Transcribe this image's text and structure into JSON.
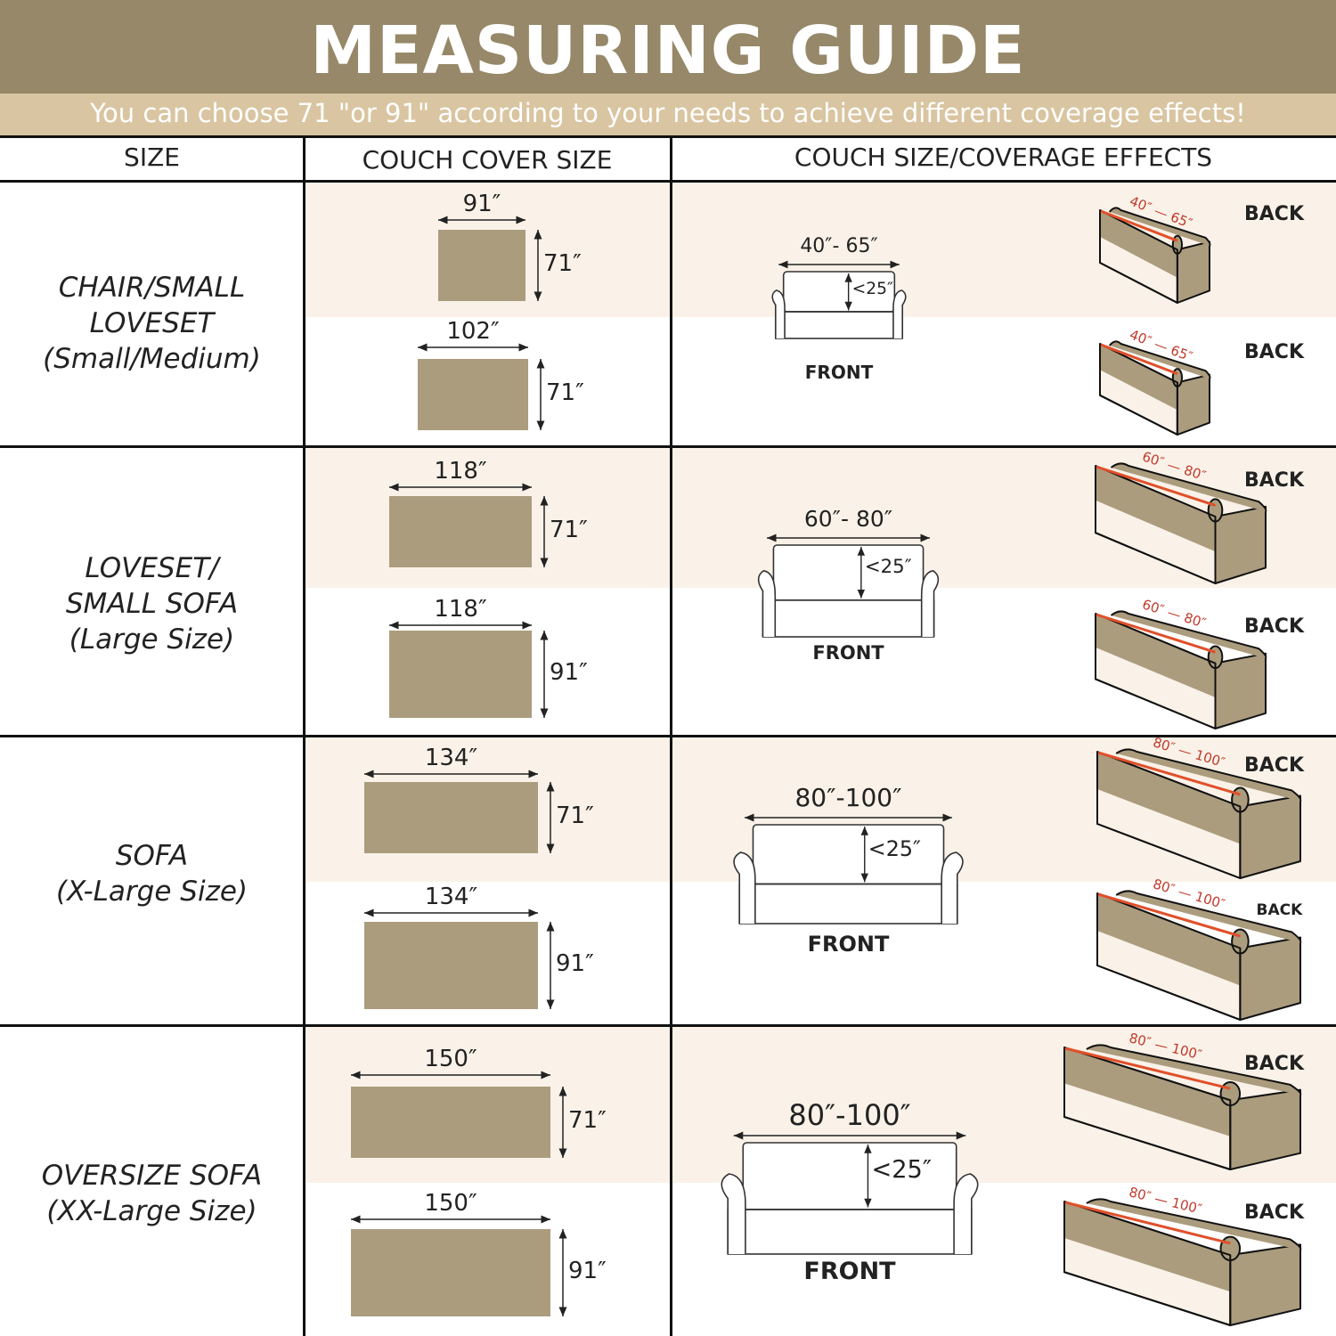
{
  "title": "MEASURING GUIDE",
  "subtitle": "You can choose 71 \"or 91\" according to your needs to achieve different coverage effects!",
  "columns": [
    "SIZE",
    "COUCH COVER SIZE",
    "COUCH SIZE/COVERAGE EFFECTS"
  ],
  "colors": {
    "header": "#968868",
    "subheader": "#d9c5a1",
    "fabric": "#ab9c7e",
    "band": "#faf2e8",
    "measure_line": "#e0502a"
  },
  "sections": [
    {
      "size_lines": [
        "CHAIR/SMALL",
        "LOVESET",
        "(Small/Medium)"
      ],
      "covers": [
        {
          "width": "91″",
          "height": "71″"
        },
        {
          "width": "102″",
          "height": "71″"
        }
      ],
      "front": {
        "range": "40″- 65″",
        "back_height": "<25″",
        "label": "FRONT"
      },
      "back": [
        {
          "range_a": "40″",
          "range_b": "65″",
          "label": "BACK"
        },
        {
          "range_a": "40″",
          "range_b": "65″",
          "label": "BACK"
        }
      ]
    },
    {
      "size_lines": [
        "LOVESET/",
        "SMALL SOFA",
        "(Large Size)"
      ],
      "covers": [
        {
          "width": "118″",
          "height": "71″"
        },
        {
          "width": "118″",
          "height": "91″"
        }
      ],
      "front": {
        "range": "60″- 80″",
        "back_height": "<25″",
        "label": "FRONT"
      },
      "back": [
        {
          "range_a": "60″",
          "range_b": "80″",
          "label": "BACK"
        },
        {
          "range_a": "60″",
          "range_b": "80″",
          "label": "BACK"
        }
      ]
    },
    {
      "size_lines": [
        "SOFA",
        "(X-Large Size)"
      ],
      "covers": [
        {
          "width": "134″",
          "height": "71″"
        },
        {
          "width": "134″",
          "height": "91″"
        }
      ],
      "front": {
        "range": "80″-100″",
        "back_height": "<25″",
        "label": "FRONT"
      },
      "back": [
        {
          "range_a": "80″",
          "range_b": "100″",
          "label": "BACK"
        },
        {
          "range_a": "80″",
          "range_b": "100″",
          "label": "BACK"
        }
      ]
    },
    {
      "size_lines": [
        "OVERSIZE SOFA",
        "(XX-Large  Size)"
      ],
      "covers": [
        {
          "width": "150″",
          "height": "71″"
        },
        {
          "width": "150″",
          "height": "91″"
        }
      ],
      "front": {
        "range": "80″-100″",
        "back_height": "<25″",
        "label": "FRONT"
      },
      "back": [
        {
          "range_a": "80″",
          "range_b": "100″",
          "label": "BACK"
        },
        {
          "range_a": "80″",
          "range_b": "100″",
          "label": "BACK"
        }
      ]
    }
  ]
}
